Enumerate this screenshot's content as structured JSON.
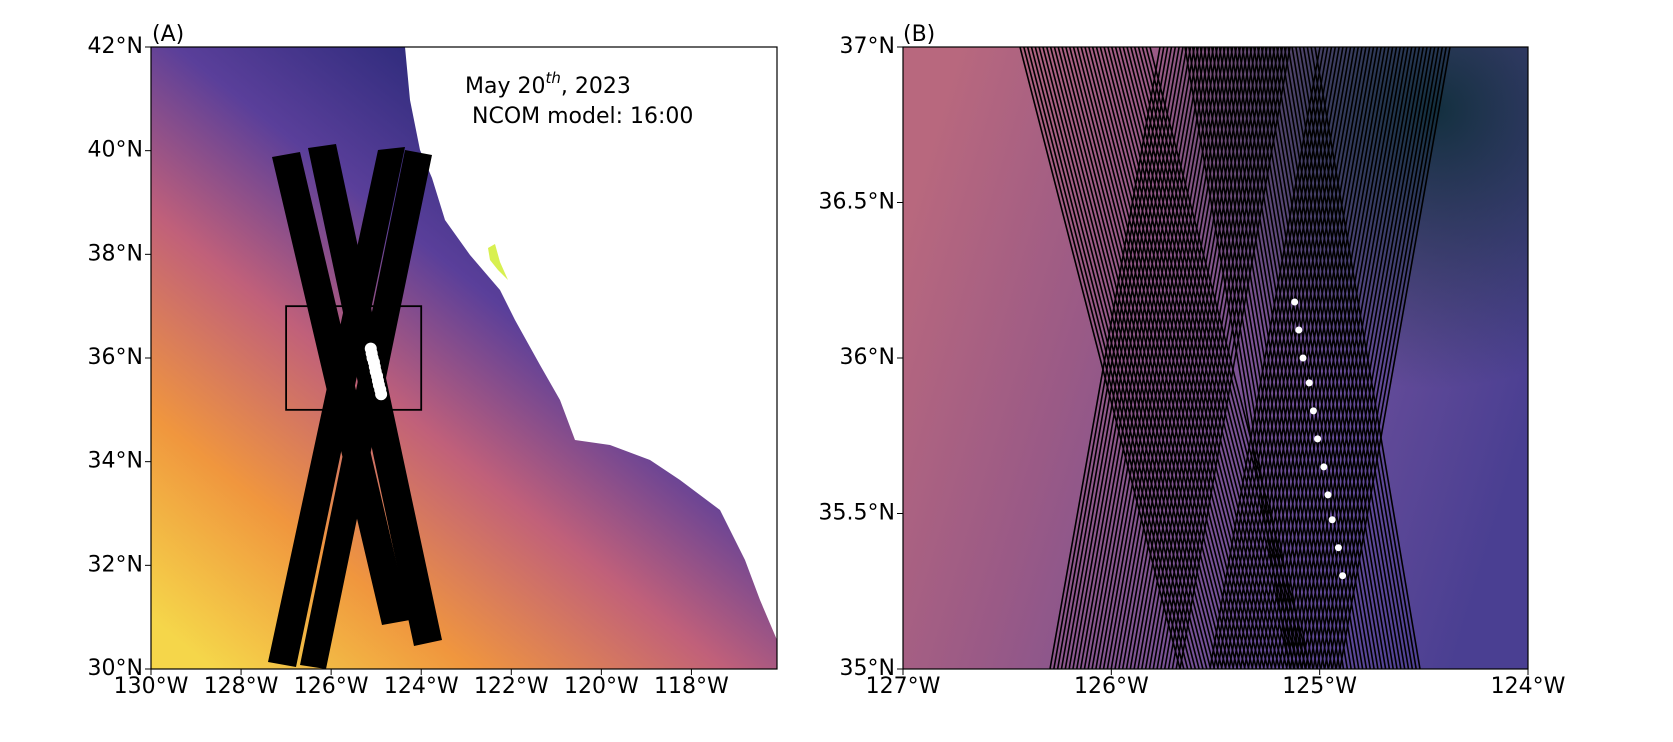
{
  "chart_data": [
    {
      "type": "map",
      "title": "(A)",
      "annotation": {
        "date": "May 20",
        "date_sup": "th",
        "date_rest": ", 2023",
        "model": "NCOM model: 16:00"
      },
      "xlim": [
        -130,
        -116.1
      ],
      "xticks": [
        {
          "value": -130,
          "label": "130°W"
        },
        {
          "value": -128,
          "label": "128°W"
        },
        {
          "value": -126,
          "label": "126°W"
        },
        {
          "value": -124,
          "label": "124°W"
        },
        {
          "value": -122,
          "label": "122°W"
        },
        {
          "value": -120,
          "label": "120°W"
        },
        {
          "value": -118,
          "label": "118°W"
        }
      ],
      "ylim": [
        30,
        42
      ],
      "yticks": [
        {
          "value": 30,
          "label": "30°N"
        },
        {
          "value": 32,
          "label": "32°N"
        },
        {
          "value": 34,
          "label": "34°N"
        },
        {
          "value": 36,
          "label": "36°N"
        },
        {
          "value": 38,
          "label": "38°N"
        },
        {
          "value": 40,
          "label": "40°N"
        },
        {
          "value": 42,
          "label": "42°N"
        }
      ]
    },
    {
      "type": "map",
      "title": "(B)",
      "xlim": [
        -127,
        -124
      ],
      "xticks": [
        {
          "value": -127,
          "label": "127°W"
        },
        {
          "value": -126,
          "label": "126°W"
        },
        {
          "value": -125,
          "label": "125°W"
        },
        {
          "value": -124,
          "label": "124°W"
        }
      ],
      "ylim": [
        35,
        37
      ],
      "yticks": [
        {
          "value": 35,
          "label": "35°N"
        },
        {
          "value": 35.5,
          "label": "35.5°N"
        },
        {
          "value": 36,
          "label": "36°N"
        },
        {
          "value": 36.5,
          "label": "36.5°N"
        },
        {
          "value": 37,
          "label": "37°N"
        }
      ],
      "points": {
        "color": "#ffffff",
        "x": [
          -125.12,
          -125.1,
          -125.08,
          -125.05,
          -125.03,
          -125.01,
          -124.98,
          -124.96,
          -124.94,
          -124.91,
          -124.89
        ],
        "y": [
          36.18,
          36.09,
          36.0,
          35.92,
          35.83,
          35.74,
          35.65,
          35.56,
          35.48,
          35.39,
          35.3
        ]
      }
    }
  ]
}
